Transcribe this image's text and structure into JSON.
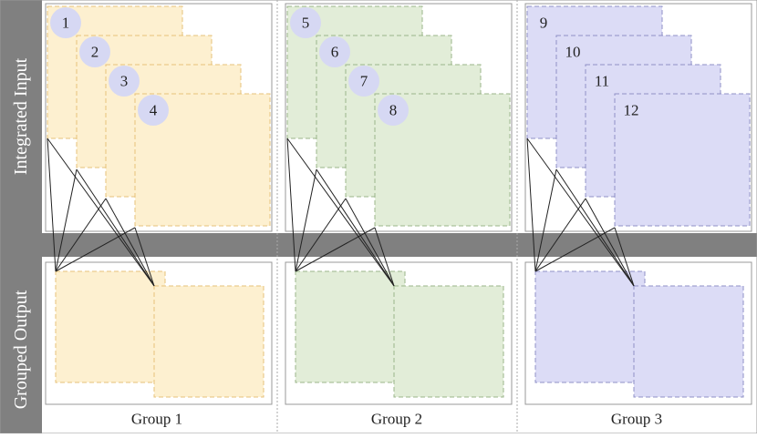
{
  "row_labels": {
    "top": "Integrated Input",
    "bottom": "Grouped Output"
  },
  "groups": [
    {
      "label": "Group 1",
      "input_ids": [
        "1",
        "2",
        "3",
        "4"
      ],
      "fill": "#fdf0d0",
      "stroke": "#e6c27a",
      "badge": "#d6d8f3",
      "badge_visible": true
    },
    {
      "label": "Group 2",
      "input_ids": [
        "5",
        "6",
        "7",
        "8"
      ],
      "fill": "#e2edd8",
      "stroke": "#9bb58a",
      "badge": "#d6d8f3",
      "badge_visible": true
    },
    {
      "label": "Group 3",
      "input_ids": [
        "9",
        "10",
        "11",
        "12"
      ],
      "fill": "#dcdcf6",
      "stroke": "#8f91c7",
      "badge": "#dcdcf6",
      "badge_visible": false
    }
  ],
  "colors": {
    "bar": "#808080",
    "panel_border": "#999999",
    "line": "#222222",
    "divider": "#aaaaaa"
  }
}
